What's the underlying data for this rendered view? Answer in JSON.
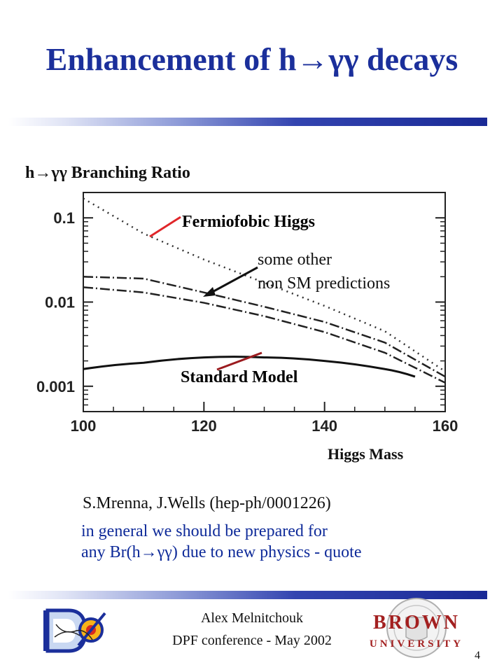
{
  "title": "Enhancement of h→γγ decays",
  "plot": {
    "title": "h→γγ Branching Ratio",
    "y_ticks": [
      "0.1",
      "0.01",
      "0.001"
    ],
    "x_ticks": [
      "100",
      "120",
      "140",
      "160"
    ],
    "xlabel": "Higgs Mass",
    "labels": {
      "fermiophobic": "Fermiofobic Higgs",
      "other_line1": "some other",
      "other_line2": "non SM  predictions",
      "sm": "Standard Model"
    },
    "colors": {
      "fermiophobic": "#e0262a",
      "sm": "#9b1b1f",
      "arrow_dark": "#111111"
    }
  },
  "reference": "S.Mrenna, J.Wells (hep-ph/0001226)",
  "text": {
    "general": "in general we should be prepared for",
    "quote": "any Br(h→γγ) due to new physics  - quote"
  },
  "footer": {
    "author": "Alex Melnitchouk",
    "conference": "DPF conference  -  May 2002",
    "page": "4",
    "d0_logo_text": "DØ",
    "brown_logo_line1": "BROWN",
    "brown_logo_line2": "UNIVERSITY"
  },
  "chart_data": {
    "type": "line",
    "xlabel": "Higgs Mass",
    "ylabel": "",
    "title": "h→γγ Branching Ratio",
    "xlim": [
      100,
      160
    ],
    "ylim": [
      0.0005,
      0.2
    ],
    "y_scale": "log",
    "series": [
      {
        "name": "Fermiofobic Higgs",
        "x": [
          100,
          110,
          120,
          130,
          140,
          150,
          160
        ],
        "y": [
          0.17,
          0.065,
          0.032,
          0.017,
          0.009,
          0.0045,
          0.0015
        ]
      },
      {
        "name": "",
        "x": [
          100,
          110,
          120,
          130,
          140,
          150,
          160
        ],
        "y": [
          0.02,
          0.019,
          0.013,
          0.0088,
          0.0058,
          0.0033,
          0.0013
        ]
      },
      {
        "name": "",
        "x": [
          100,
          110,
          120,
          130,
          140,
          150,
          160
        ],
        "y": [
          0.015,
          0.013,
          0.0098,
          0.0068,
          0.0044,
          0.0025,
          0.0011
        ]
      },
      {
        "name": "Standard Model",
        "x": [
          100,
          110,
          120,
          130,
          140,
          150,
          155
        ],
        "y": [
          0.0016,
          0.0019,
          0.0022,
          0.0022,
          0.002,
          0.0016,
          0.0013
        ]
      }
    ]
  }
}
